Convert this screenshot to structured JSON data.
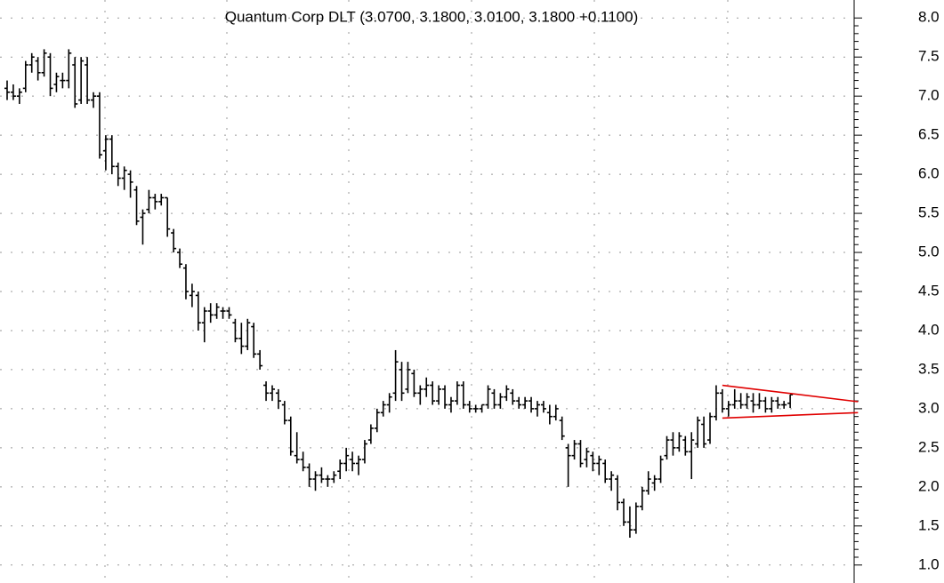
{
  "chart_data": {
    "type": "ohlc",
    "title": "Quantum Corp DLT (3.0700, 3.1800, 3.0100, 3.1800 +0.1100)",
    "color": "#000000",
    "grid": true,
    "ylim": [
      0.77,
      8.23
    ],
    "yticks": [
      {
        "value": 1,
        "label": "1.0"
      },
      1.5,
      {
        "value": 2,
        "label": "2.0"
      },
      2.5,
      {
        "value": 3,
        "label": "3.0"
      },
      3.5,
      {
        "value": 4,
        "label": "4.0"
      },
      4.5,
      {
        "value": 5,
        "label": "5.0"
      },
      5.5,
      {
        "value": 6,
        "label": "6.0"
      },
      6.5,
      {
        "value": 7,
        "label": "7.0"
      },
      7.5,
      {
        "value": 8,
        "label": "8.0"
      }
    ],
    "bars": [
      [
        7.1,
        7.2,
        6.95,
        7.05
      ],
      [
        7.05,
        7.15,
        6.95,
        7.0
      ],
      [
        7.0,
        7.1,
        6.9,
        7.05
      ],
      [
        7.1,
        7.45,
        7.05,
        7.4
      ],
      [
        7.4,
        7.55,
        7.3,
        7.5
      ],
      [
        7.45,
        7.5,
        7.2,
        7.3
      ],
      [
        7.3,
        7.6,
        7.25,
        7.55
      ],
      [
        7.5,
        7.55,
        7.0,
        7.1
      ],
      [
        7.15,
        7.3,
        7.05,
        7.25
      ],
      [
        7.2,
        7.3,
        7.1,
        7.2
      ],
      [
        7.2,
        7.6,
        7.1,
        7.55
      ],
      [
        7.4,
        7.5,
        6.85,
        6.9
      ],
      [
        6.95,
        7.5,
        6.9,
        7.45
      ],
      [
        7.4,
        7.5,
        6.9,
        6.95
      ],
      [
        6.95,
        7.05,
        6.85,
        7.0
      ],
      [
        7.0,
        7.05,
        6.2,
        6.25
      ],
      [
        6.3,
        6.5,
        6.05,
        6.45
      ],
      [
        6.45,
        6.5,
        6.0,
        6.1
      ],
      [
        6.1,
        6.15,
        5.85,
        5.95
      ],
      [
        5.95,
        6.1,
        5.8,
        6.05
      ],
      [
        6.0,
        6.05,
        5.7,
        5.9
      ],
      [
        5.8,
        5.85,
        5.35,
        5.4
      ],
      [
        5.45,
        5.55,
        5.1,
        5.5
      ],
      [
        5.55,
        5.8,
        5.5,
        5.7
      ],
      [
        5.7,
        5.75,
        5.55,
        5.65
      ],
      [
        5.65,
        5.75,
        5.6,
        5.7
      ],
      [
        5.7,
        5.7,
        5.2,
        5.3
      ],
      [
        5.25,
        5.3,
        5.0,
        5.05
      ],
      [
        5.0,
        5.05,
        4.8,
        4.85
      ],
      [
        4.8,
        4.85,
        4.4,
        4.5
      ],
      [
        4.45,
        4.6,
        4.3,
        4.5
      ],
      [
        4.45,
        4.5,
        4.0,
        4.1
      ],
      [
        4.1,
        4.3,
        3.85,
        4.25
      ],
      [
        4.25,
        4.35,
        4.1,
        4.2
      ],
      [
        4.2,
        4.35,
        4.15,
        4.3
      ],
      [
        4.25,
        4.3,
        4.15,
        4.25
      ],
      [
        4.25,
        4.3,
        4.15,
        4.2
      ],
      [
        4.1,
        4.15,
        3.85,
        3.9
      ],
      [
        3.9,
        4.1,
        3.7,
        3.8
      ],
      [
        3.8,
        4.15,
        3.75,
        4.1
      ],
      [
        4.05,
        4.1,
        3.65,
        3.7
      ],
      [
        3.7,
        3.75,
        3.5,
        3.55
      ],
      [
        3.3,
        3.35,
        3.1,
        3.2
      ],
      [
        3.2,
        3.3,
        3.1,
        3.25
      ],
      [
        3.2,
        3.25,
        3.0,
        3.1
      ],
      [
        3.05,
        3.1,
        2.8,
        2.85
      ],
      [
        2.85,
        2.9,
        2.4,
        2.45
      ],
      [
        2.4,
        2.7,
        2.3,
        2.35
      ],
      [
        2.35,
        2.45,
        2.2,
        2.25
      ],
      [
        2.25,
        2.3,
        2.0,
        2.1
      ],
      [
        2.1,
        2.2,
        1.95,
        2.15
      ],
      [
        2.15,
        2.25,
        2.05,
        2.1
      ],
      [
        2.1,
        2.15,
        2.0,
        2.1
      ],
      [
        2.1,
        2.2,
        2.05,
        2.15
      ],
      [
        2.2,
        2.35,
        2.1,
        2.3
      ],
      [
        2.3,
        2.5,
        2.2,
        2.4
      ],
      [
        2.35,
        2.45,
        2.2,
        2.3
      ],
      [
        2.3,
        2.4,
        2.15,
        2.35
      ],
      [
        2.35,
        2.6,
        2.3,
        2.55
      ],
      [
        2.6,
        2.8,
        2.55,
        2.75
      ],
      [
        2.75,
        3.0,
        2.7,
        2.95
      ],
      [
        2.95,
        3.1,
        2.9,
        3.05
      ],
      [
        3.05,
        3.2,
        2.95,
        3.15
      ],
      [
        3.2,
        3.75,
        3.1,
        3.6
      ],
      [
        3.5,
        3.6,
        3.1,
        3.2
      ],
      [
        3.25,
        3.6,
        3.2,
        3.5
      ],
      [
        3.45,
        3.5,
        3.15,
        3.2
      ],
      [
        3.2,
        3.3,
        3.05,
        3.25
      ],
      [
        3.25,
        3.4,
        3.15,
        3.3
      ],
      [
        3.3,
        3.35,
        3.05,
        3.1
      ],
      [
        3.1,
        3.3,
        3.05,
        3.25
      ],
      [
        3.25,
        3.3,
        3.0,
        3.05
      ],
      [
        3.05,
        3.15,
        2.95,
        3.1
      ],
      [
        3.1,
        3.35,
        3.05,
        3.3
      ],
      [
        3.3,
        3.35,
        3.0,
        3.05
      ],
      [
        3.05,
        3.1,
        2.95,
        3.0
      ],
      [
        3.0,
        3.05,
        2.95,
        3.0
      ],
      [
        3.0,
        3.05,
        2.95,
        3.05
      ],
      [
        3.05,
        3.3,
        3.0,
        3.25
      ],
      [
        3.2,
        3.25,
        3.0,
        3.05
      ],
      [
        3.05,
        3.2,
        3.0,
        3.15
      ],
      [
        3.15,
        3.3,
        3.1,
        3.25
      ],
      [
        3.2,
        3.25,
        3.05,
        3.1
      ],
      [
        3.1,
        3.15,
        3.0,
        3.05
      ],
      [
        3.05,
        3.15,
        3.0,
        3.1
      ],
      [
        3.1,
        3.15,
        2.95,
        3.0
      ],
      [
        3.0,
        3.1,
        2.9,
        3.05
      ],
      [
        3.05,
        3.1,
        2.95,
        3.0
      ],
      [
        2.95,
        3.05,
        2.8,
        2.9
      ],
      [
        2.9,
        3.05,
        2.85,
        3.0
      ],
      [
        2.85,
        2.9,
        2.6,
        2.65
      ],
      [
        2.5,
        2.55,
        2.0,
        2.4
      ],
      [
        2.4,
        2.6,
        2.35,
        2.55
      ],
      [
        2.55,
        2.6,
        2.25,
        2.3
      ],
      [
        2.35,
        2.5,
        2.25,
        2.45
      ],
      [
        2.4,
        2.45,
        2.2,
        2.3
      ],
      [
        2.3,
        2.4,
        2.15,
        2.35
      ],
      [
        2.3,
        2.35,
        2.05,
        2.1
      ],
      [
        2.1,
        2.2,
        1.95,
        2.15
      ],
      [
        2.1,
        2.15,
        1.7,
        1.8
      ],
      [
        1.8,
        1.85,
        1.5,
        1.55
      ],
      [
        1.55,
        1.75,
        1.35,
        1.45
      ],
      [
        1.45,
        1.8,
        1.4,
        1.75
      ],
      [
        1.75,
        2.0,
        1.7,
        1.95
      ],
      [
        1.95,
        2.2,
        1.9,
        2.1
      ],
      [
        2.05,
        2.15,
        1.95,
        2.1
      ],
      [
        2.1,
        2.4,
        2.05,
        2.35
      ],
      [
        2.4,
        2.65,
        2.35,
        2.6
      ],
      [
        2.6,
        2.7,
        2.4,
        2.5
      ],
      [
        2.5,
        2.7,
        2.45,
        2.65
      ],
      [
        2.6,
        2.65,
        2.4,
        2.45
      ],
      [
        2.45,
        2.7,
        2.1,
        2.6
      ],
      [
        2.55,
        2.9,
        2.5,
        2.85
      ],
      [
        2.8,
        2.9,
        2.5,
        2.55
      ],
      [
        2.6,
        2.95,
        2.55,
        2.9
      ],
      [
        2.9,
        3.3,
        2.85,
        3.2
      ],
      [
        3.2,
        3.25,
        2.95,
        3.0
      ],
      [
        3.0,
        3.1,
        2.9,
        3.05
      ],
      [
        3.05,
        3.25,
        3.0,
        3.1
      ],
      [
        3.1,
        3.2,
        3.0,
        3.05
      ],
      [
        3.05,
        3.2,
        3.0,
        3.15
      ],
      [
        3.1,
        3.2,
        2.95,
        3.05
      ],
      [
        3.05,
        3.2,
        3.0,
        3.1
      ],
      [
        3.1,
        3.15,
        2.95,
        3.0
      ],
      [
        3.0,
        3.15,
        2.95,
        3.1
      ],
      [
        3.1,
        3.15,
        3.0,
        3.05
      ],
      [
        3.05,
        3.1,
        3.0,
        3.05
      ],
      [
        3.07,
        3.18,
        3.01,
        3.18
      ]
    ],
    "trendlines": [
      {
        "x": [
          116,
          138
        ],
        "values": [
          3.3,
          3.09
        ],
        "color": "#e00000"
      },
      {
        "x": [
          116,
          138
        ],
        "values": [
          2.88,
          2.95
        ],
        "color": "#e00000"
      }
    ]
  }
}
